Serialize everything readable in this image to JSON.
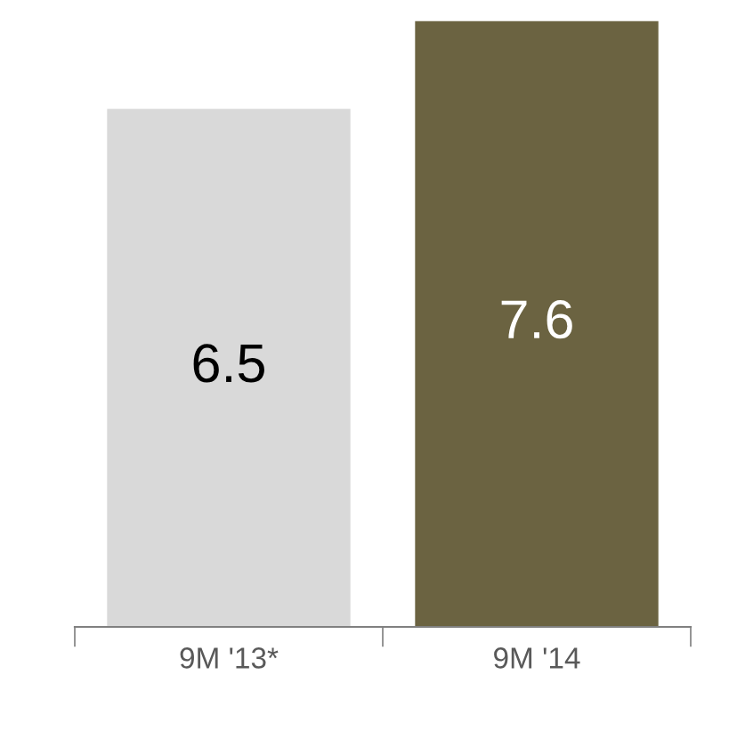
{
  "chart_data": {
    "type": "bar",
    "categories": [
      "9M '13*",
      "9M '14"
    ],
    "values": [
      6.5,
      7.6
    ],
    "colors": [
      "#d9d9d9",
      "#6b6341"
    ],
    "data_labels": true,
    "grid": false,
    "legend": false,
    "tick_labels": "x"
  }
}
